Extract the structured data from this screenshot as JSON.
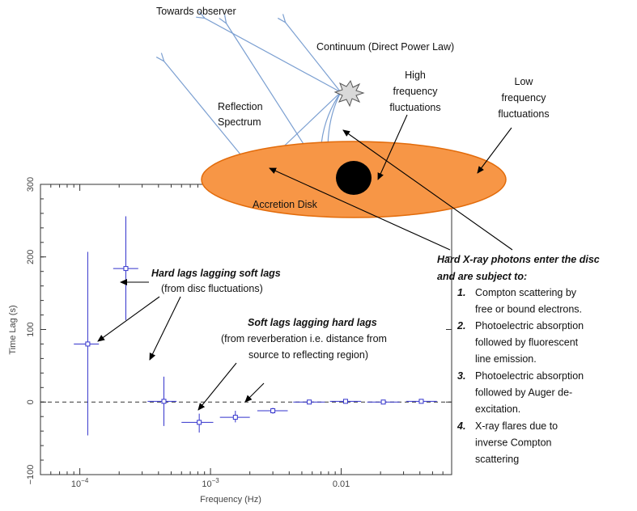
{
  "labels": {
    "towards_observer": "Towards observer",
    "continuum": "Continuum (Direct Power Law)",
    "reflection_line1": "Reflection",
    "reflection_line2": "Spectrum",
    "high_freq_1": "High",
    "high_freq_2": "frequency",
    "high_freq_3": "fluctuations",
    "low_freq_1": "Low",
    "low_freq_2": "frequency",
    "low_freq_3": "fluctuations",
    "accretion_disk": "Accretion Disk",
    "hard_lags_title": "Hard lags lagging soft lags",
    "hard_lags_sub": "(from disc fluctuations)",
    "soft_lags_title": "Soft lags lagging hard lags",
    "soft_lags_sub1": "(from reverberation i.e. distance from",
    "soft_lags_sub2": "source to reflecting region)",
    "hard_xray_1": "Hard X-ray photons enter the disc",
    "hard_xray_2": "and are subject to:",
    "list": [
      {
        "num": "1.",
        "lines": [
          "Compton scattering by",
          "free or bound electrons."
        ]
      },
      {
        "num": "2.",
        "lines": [
          "Photoelectric absorption",
          "followed by fluorescent",
          "line emission."
        ]
      },
      {
        "num": "3.",
        "lines": [
          "Photoelectric absorption",
          "followed by Auger de-",
          "excitation."
        ]
      },
      {
        "num": "4.",
        "lines": [
          " X-ray flares due to",
          "inverse Compton",
          "scattering"
        ]
      }
    ]
  },
  "colors": {
    "disk": "#f79646",
    "disk_stroke": "#e26b0a",
    "rays": "#7b9fd1",
    "data": "#3333cc",
    "flare": "#d9d9d9"
  },
  "chart_data": {
    "type": "scatter",
    "xlabel": "Frequency (Hz)",
    "ylabel": "Time Lag (s)",
    "xscale": "log",
    "xlim": [
      5e-05,
      0.07
    ],
    "ylim": [
      -100,
      300
    ],
    "x_ticks": [
      {
        "value": 0.0001,
        "base": "10",
        "exp": "−4"
      },
      {
        "value": 0.001,
        "base": "10",
        "exp": "−3"
      },
      {
        "value": 0.01,
        "label": "0.01"
      }
    ],
    "y_ticks": [
      {
        "value": -100,
        "label": "−100"
      },
      {
        "value": 0,
        "label": "0"
      },
      {
        "value": 100,
        "label": "100"
      },
      {
        "value": 200,
        "label": "200"
      },
      {
        "value": 300,
        "label": "300"
      }
    ],
    "reference_line": 0,
    "points": [
      {
        "x": 0.000115,
        "y": 80,
        "xlo": 9e-05,
        "xhi": 0.00014,
        "ylo": -46,
        "yhi": 207
      },
      {
        "x": 0.000225,
        "y": 184,
        "xlo": 0.00018,
        "xhi": 0.00028,
        "ylo": 113,
        "yhi": 256
      },
      {
        "x": 0.00044,
        "y": 1,
        "xlo": 0.00033,
        "xhi": 0.00055,
        "ylo": -33,
        "yhi": 35
      },
      {
        "x": 0.00082,
        "y": -28,
        "xlo": 0.0006,
        "xhi": 0.00105,
        "ylo": -42,
        "yhi": -16
      },
      {
        "x": 0.00155,
        "y": -21,
        "xlo": 0.00118,
        "xhi": 0.002,
        "ylo": -28,
        "yhi": -12
      },
      {
        "x": 0.003,
        "y": -12,
        "xlo": 0.00228,
        "xhi": 0.0039,
        "ylo": -16,
        "yhi": -8
      },
      {
        "x": 0.0057,
        "y": 0,
        "xlo": 0.0043,
        "xhi": 0.0075,
        "ylo": -2,
        "yhi": 2
      },
      {
        "x": 0.0108,
        "y": 1,
        "xlo": 0.0082,
        "xhi": 0.0142,
        "ylo": -1,
        "yhi": 3
      },
      {
        "x": 0.021,
        "y": 0,
        "xlo": 0.0158,
        "xhi": 0.028,
        "ylo": -1,
        "yhi": 1
      },
      {
        "x": 0.041,
        "y": 1,
        "xlo": 0.0315,
        "xhi": 0.054,
        "ylo": 0,
        "yhi": 2
      }
    ]
  }
}
